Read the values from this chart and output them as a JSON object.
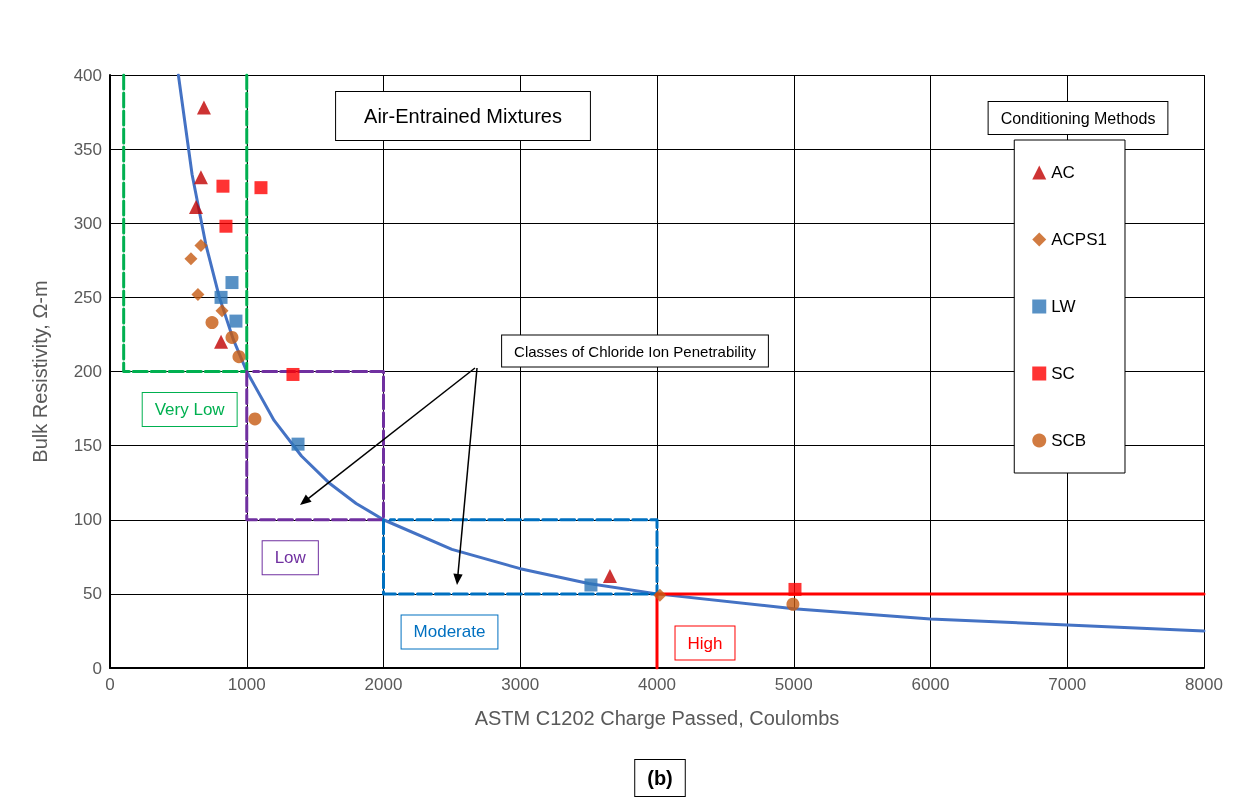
{
  "chart_data": {
    "type": "scatter",
    "xlabel": "ASTM C1202 Charge Passed, Coulombs",
    "ylabel": "Bulk Resistivity, Ω-m",
    "legend_title": "Conditioning Methods",
    "annotations": [
      "Air-Entrained Mixtures",
      "Classes of Chloride Ion Penetrability",
      "(b)"
    ],
    "xlim": [
      0,
      8000
    ],
    "xticks": [
      0,
      1000,
      2000,
      3000,
      4000,
      5000,
      6000,
      7000,
      8000
    ],
    "ylim": [
      0,
      400
    ],
    "yticks": [
      0,
      50,
      100,
      150,
      200,
      250,
      300,
      350,
      400
    ],
    "grid": true,
    "legend": "top right",
    "series": [
      {
        "type": "line",
        "color": "#4472c4",
        "marker": "none",
        "line_style": "solid",
        "x": [
          500,
          600,
          700,
          800,
          900,
          1000,
          1200,
          1400,
          1600,
          1800,
          2000,
          2500,
          3000,
          3500,
          4000,
          5000,
          6000,
          7000,
          8000
        ],
        "values": [
          400,
          333,
          286,
          250,
          222,
          200,
          167,
          143,
          125,
          111,
          100,
          80,
          67,
          57,
          50,
          40,
          33,
          29,
          25
        ]
      },
      {
        "type": "line",
        "name": "Very Low",
        "color": "#00b050",
        "marker": "none",
        "line_style": "dashed",
        "x": [
          1000,
          1000,
          100,
          100
        ],
        "values": [
          400,
          200,
          200,
          400
        ]
      },
      {
        "type": "line",
        "name": "Low",
        "color": "#7030a0",
        "marker": "none",
        "line_style": "dashed",
        "x": [
          1000,
          1000,
          2000,
          2000,
          1050
        ],
        "values": [
          200,
          100,
          100,
          200,
          200
        ]
      },
      {
        "type": "line",
        "name": "Moderate",
        "color": "#0070c0",
        "marker": "none",
        "line_style": "dashed",
        "x": [
          2000,
          2000,
          4000,
          4000,
          2050
        ],
        "values": [
          100,
          50,
          50,
          100,
          100
        ]
      },
      {
        "type": "line",
        "name": "High",
        "color": "#ff0000",
        "marker": "none",
        "line_style": "solid",
        "x": [
          4000,
          4000,
          8000
        ],
        "values": [
          0,
          50,
          50
        ]
      },
      {
        "name": "AC",
        "color": "#c00000",
        "marker": "triangle",
        "x": [
          687,
          665,
          629,
          812,
          3656
        ],
        "values": [
          378,
          331,
          311,
          220,
          62
        ]
      },
      {
        "name": "ACPS1",
        "color": "#c55a11",
        "marker": "diamond",
        "x": [
          665,
          592,
          643,
          819,
          4021
        ],
        "values": [
          285,
          276,
          252,
          241,
          49
        ]
      },
      {
        "name": "LW",
        "color": "#2e75b6",
        "marker": "square",
        "x": [
          892,
          812,
          921,
          1375,
          3517
        ],
        "values": [
          260,
          250,
          234,
          151,
          56
        ]
      },
      {
        "name": "SC",
        "color": "#ff0000",
        "marker": "square",
        "x": [
          826,
          1104,
          848,
          1338,
          5009
        ],
        "values": [
          325,
          324,
          298,
          198,
          53
        ]
      },
      {
        "name": "SCB",
        "color": "#c55a11",
        "marker": "circle",
        "x": [
          746,
          892,
          943,
          1060,
          4994
        ],
        "values": [
          233,
          223,
          210,
          168,
          43
        ]
      }
    ]
  }
}
